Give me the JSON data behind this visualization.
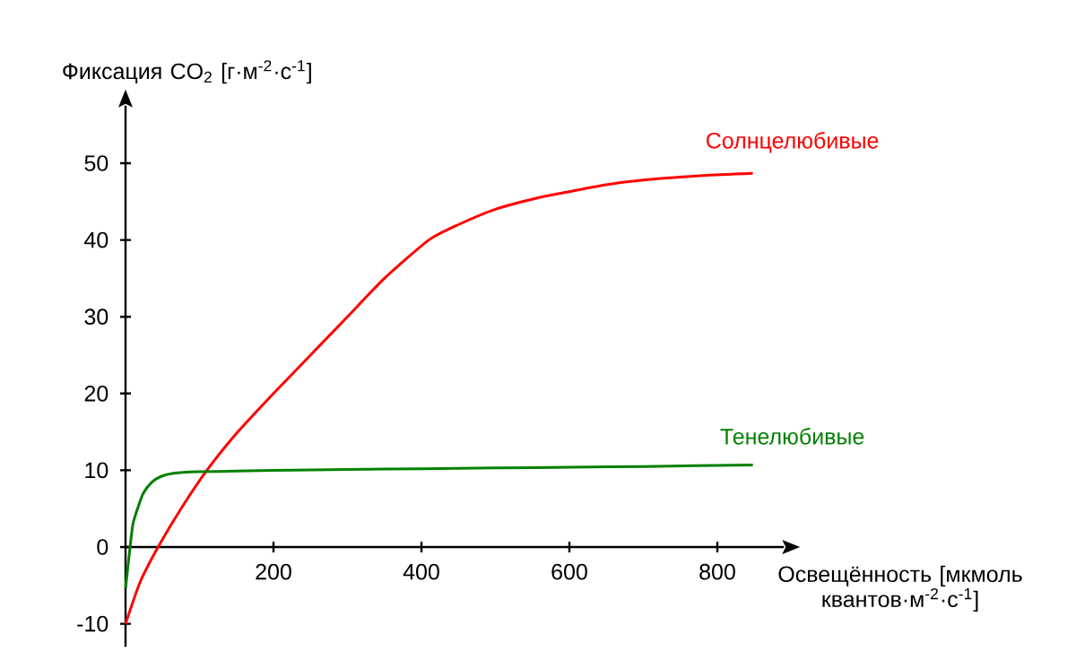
{
  "chart_data": {
    "type": "line",
    "xlabel": "Освещённость [мкмоль квантов·м$^{-2}$·с$^{-1}$]",
    "ylabel": "Фиксация CO$_{2}$ [г·м$^{-2}$·с$^{-1}$]",
    "xlim": [
      0,
      890
    ],
    "ylim": [
      -13,
      57.5
    ],
    "xticks": [
      200,
      400,
      600,
      800
    ],
    "yticks": [
      -10,
      0,
      10,
      20,
      30,
      40,
      50
    ],
    "grid": false,
    "legend": false,
    "marker": "none",
    "line_style": "solid",
    "series": [
      {
        "name": "Солнцелюбивые",
        "color": "#ff0000",
        "x": [
          0,
          20,
          44,
          75,
          110,
          150,
          200,
          250,
          300,
          350,
          410,
          450,
          500,
          558,
          600,
          650,
          700,
          780,
          848
        ],
        "values": [
          -10,
          -4.5,
          0,
          5,
          10,
          14.8,
          20,
          25,
          30,
          35,
          40,
          42,
          44,
          45.5,
          46.3,
          47.2,
          47.8,
          48.4,
          48.7
        ]
      },
      {
        "name": "Тенелюбивые",
        "color": "#008000",
        "x": [
          0,
          5,
          10,
          18,
          24,
          35,
          48,
          65,
          97,
          150,
          200,
          300,
          400,
          500,
          600,
          700,
          848
        ],
        "values": [
          -5.4,
          -1,
          3,
          5.5,
          7,
          8.4,
          9.2,
          9.6,
          9.8,
          9.9,
          10,
          10.1,
          10.2,
          10.3,
          10.4,
          10.5,
          10.7
        ]
      }
    ]
  }
}
